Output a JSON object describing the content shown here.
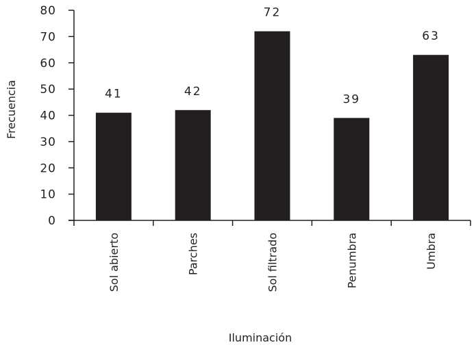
{
  "chart_data": {
    "type": "bar",
    "title": "",
    "xlabel": "Iluminación",
    "ylabel": "Frecuencia",
    "categories": [
      "Sol abierto",
      "Parches",
      "Sol filtrado",
      "Penumbra",
      "Umbra"
    ],
    "values": [
      41,
      42,
      72,
      39,
      63
    ],
    "data_labels": [
      "41",
      "42",
      "72",
      "39",
      "63"
    ],
    "ylim": [
      0,
      80
    ],
    "yticks": [
      0,
      10,
      20,
      30,
      40,
      50,
      60,
      70,
      80
    ],
    "grid": false,
    "legend": "none",
    "bar_color": "#231f20"
  }
}
